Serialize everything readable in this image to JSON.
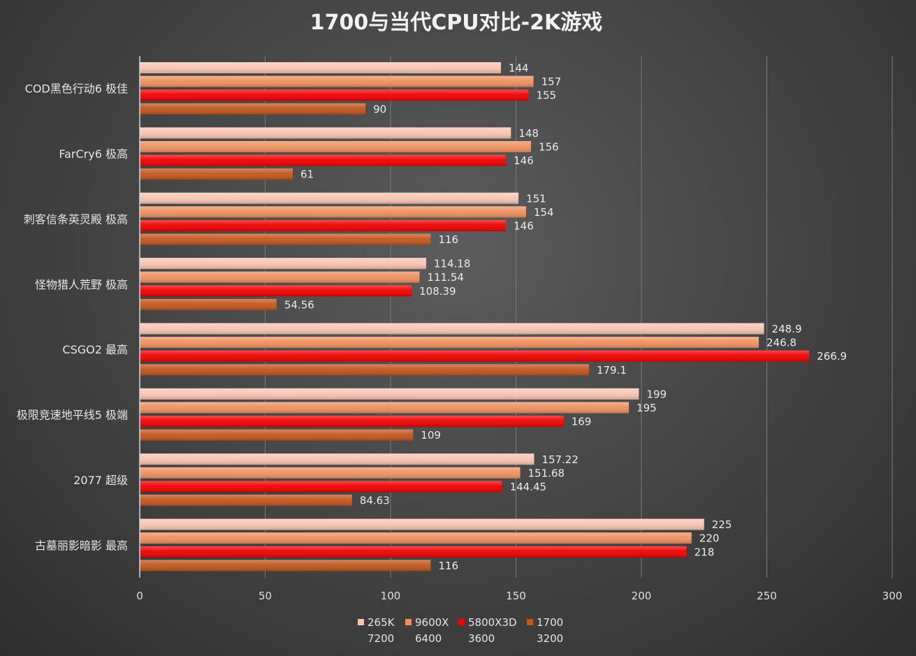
{
  "chart_data": {
    "type": "bar",
    "orientation": "horizontal",
    "title": "1700与当代CPU对比-2K游戏",
    "categories": [
      "COD黑色行动6 极佳",
      "FarCry6 极高",
      "刺客信条英灵殿 极高",
      "怪物猎人荒野 极高",
      "CSGO2 最高",
      "极限竞速地平线5 极端",
      "2077 超级",
      "古墓丽影暗影 最高"
    ],
    "series": [
      {
        "name": "265K",
        "sub": "7200",
        "color": "#f8c4b2",
        "values": [
          144,
          148,
          151,
          114.18,
          248.9,
          199,
          157.22,
          225
        ],
        "labels": [
          "144",
          "148",
          "151",
          "114.18",
          "248.9",
          "199",
          "157.22",
          "225"
        ]
      },
      {
        "name": "9600X",
        "sub": "6400",
        "color": "#ee9060",
        "values": [
          157,
          156,
          154,
          111.54,
          246.8,
          195,
          151.68,
          220
        ],
        "labels": [
          "157",
          "156",
          "154",
          "111.54",
          "246.8",
          "195",
          "151.68",
          "220"
        ]
      },
      {
        "name": "5800X3D",
        "sub": "3600",
        "color": "#f00000",
        "values": [
          155,
          146,
          146,
          108.39,
          266.9,
          169,
          144.45,
          218
        ],
        "labels": [
          "155",
          "146",
          "146",
          "108.39",
          "266.9",
          "169",
          "144.45",
          "218"
        ]
      },
      {
        "name": "1700",
        "sub": "3200",
        "color": "#c2561e",
        "values": [
          90,
          61,
          116,
          54.56,
          179.1,
          109,
          84.63,
          116
        ],
        "labels": [
          "90",
          "61",
          "116",
          "54.56",
          "179.1",
          "109",
          "84.63",
          "116"
        ]
      }
    ],
    "xlim": [
      0,
      300
    ],
    "xticks": [
      "0",
      "50",
      "100",
      "150",
      "200",
      "250",
      "300"
    ],
    "grid": true,
    "legend": "bottom-center"
  }
}
